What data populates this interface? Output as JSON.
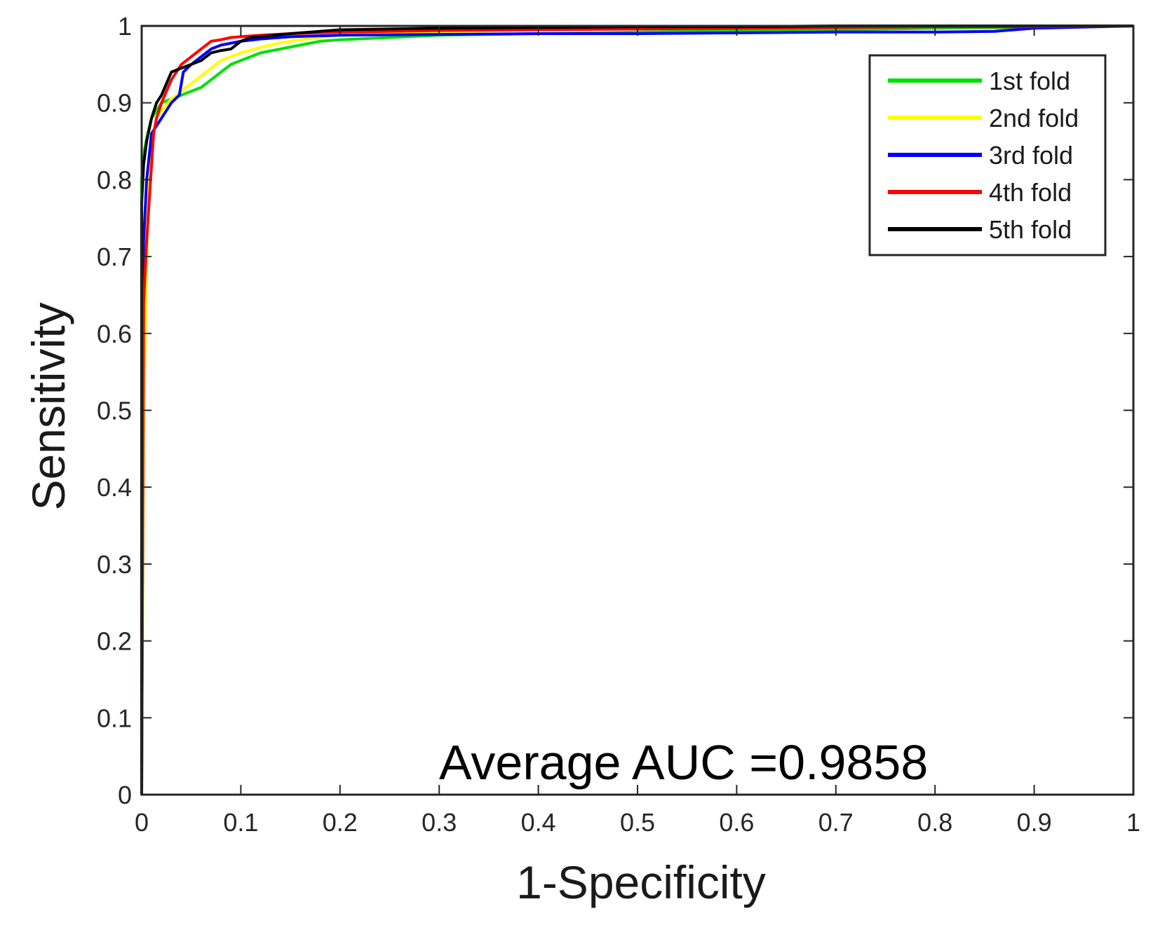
{
  "chart_data": {
    "type": "line",
    "title": "",
    "xlabel": "1-Specificity",
    "ylabel": "Sensitivity",
    "xlim": [
      0,
      1
    ],
    "ylim": [
      0,
      1
    ],
    "xticks": [
      "0",
      "0.1",
      "0.2",
      "0.3",
      "0.4",
      "0.5",
      "0.6",
      "0.7",
      "0.8",
      "0.9",
      "1"
    ],
    "yticks": [
      "0",
      "0.1",
      "0.2",
      "0.3",
      "0.4",
      "0.5",
      "0.6",
      "0.7",
      "0.8",
      "0.9",
      "1"
    ],
    "grid": false,
    "legend_position": "top-right",
    "annotation": "Average AUC =0.9858",
    "series": [
      {
        "name": "1st fold",
        "color": "#00e000",
        "x": [
          0,
          0,
          0.003,
          0.006,
          0.01,
          0.015,
          0.02,
          0.03,
          0.04,
          0.05,
          0.06,
          0.07,
          0.08,
          0.09,
          0.1,
          0.12,
          0.14,
          0.16,
          0.18,
          0.2,
          0.25,
          0.3,
          0.4,
          0.5,
          0.6,
          0.7,
          0.8,
          0.9,
          1.0
        ],
        "y": [
          0,
          0.8,
          0.84,
          0.86,
          0.88,
          0.89,
          0.9,
          0.905,
          0.91,
          0.915,
          0.92,
          0.93,
          0.94,
          0.95,
          0.955,
          0.965,
          0.97,
          0.975,
          0.98,
          0.982,
          0.985,
          0.988,
          0.99,
          0.992,
          0.994,
          0.995,
          0.997,
          0.998,
          1.0
        ]
      },
      {
        "name": "2nd fold",
        "color": "#ffff00",
        "x": [
          0,
          0.002,
          0.004,
          0.006,
          0.01,
          0.015,
          0.02,
          0.03,
          0.04,
          0.05,
          0.06,
          0.07,
          0.08,
          0.1,
          0.12,
          0.14,
          0.16,
          0.18,
          0.2,
          0.25,
          0.3,
          0.4,
          0.5,
          0.55,
          0.6,
          0.7,
          0.8,
          0.9,
          0.92,
          1.0
        ],
        "y": [
          0,
          0.47,
          0.62,
          0.75,
          0.85,
          0.88,
          0.89,
          0.905,
          0.915,
          0.925,
          0.935,
          0.945,
          0.955,
          0.965,
          0.972,
          0.978,
          0.982,
          0.985,
          0.988,
          0.99,
          0.992,
          0.995,
          0.997,
          0.998,
          0.999,
          0.999,
          0.999,
          0.999,
          1.0,
          1.0
        ]
      },
      {
        "name": "3rd fold",
        "color": "#0000ff",
        "x": [
          0,
          0.002,
          0.005,
          0.01,
          0.015,
          0.02,
          0.03,
          0.038,
          0.042,
          0.05,
          0.06,
          0.07,
          0.08,
          0.1,
          0.12,
          0.15,
          0.2,
          0.3,
          0.4,
          0.5,
          0.6,
          0.7,
          0.8,
          0.86,
          0.88,
          0.9,
          1.0
        ],
        "y": [
          0,
          0.72,
          0.8,
          0.86,
          0.87,
          0.88,
          0.9,
          0.91,
          0.94,
          0.95,
          0.96,
          0.97,
          0.975,
          0.98,
          0.983,
          0.986,
          0.988,
          0.989,
          0.99,
          0.99,
          0.991,
          0.992,
          0.992,
          0.993,
          0.995,
          0.997,
          1.0
        ]
      },
      {
        "name": "4th fold",
        "color": "#ff0000",
        "x": [
          0,
          0.002,
          0.005,
          0.008,
          0.012,
          0.015,
          0.02,
          0.03,
          0.04,
          0.05,
          0.06,
          0.07,
          0.08,
          0.09,
          0.1,
          0.12,
          0.15,
          0.2,
          0.3,
          0.4,
          0.5,
          0.6,
          0.7,
          0.8,
          0.9,
          1.0
        ],
        "y": [
          0,
          0.64,
          0.72,
          0.78,
          0.86,
          0.88,
          0.9,
          0.93,
          0.95,
          0.96,
          0.97,
          0.98,
          0.982,
          0.985,
          0.986,
          0.988,
          0.99,
          0.992,
          0.994,
          0.995,
          0.996,
          0.997,
          0.998,
          0.999,
          0.999,
          1.0
        ]
      },
      {
        "name": "5th fold",
        "color": "#000000",
        "x": [
          0,
          0,
          0.002,
          0.005,
          0.01,
          0.015,
          0.02,
          0.03,
          0.04,
          0.05,
          0.06,
          0.07,
          0.08,
          0.09,
          0.1,
          0.11,
          0.12,
          0.15,
          0.2,
          0.3,
          0.4,
          0.5,
          0.6,
          0.7,
          0.8,
          0.9,
          1.0
        ],
        "y": [
          0,
          0.77,
          0.82,
          0.85,
          0.88,
          0.9,
          0.91,
          0.94,
          0.945,
          0.95,
          0.955,
          0.965,
          0.968,
          0.97,
          0.98,
          0.985,
          0.986,
          0.99,
          0.995,
          0.997,
          0.998,
          0.999,
          0.999,
          1.0,
          1.0,
          1.0,
          1.0
        ]
      }
    ]
  }
}
